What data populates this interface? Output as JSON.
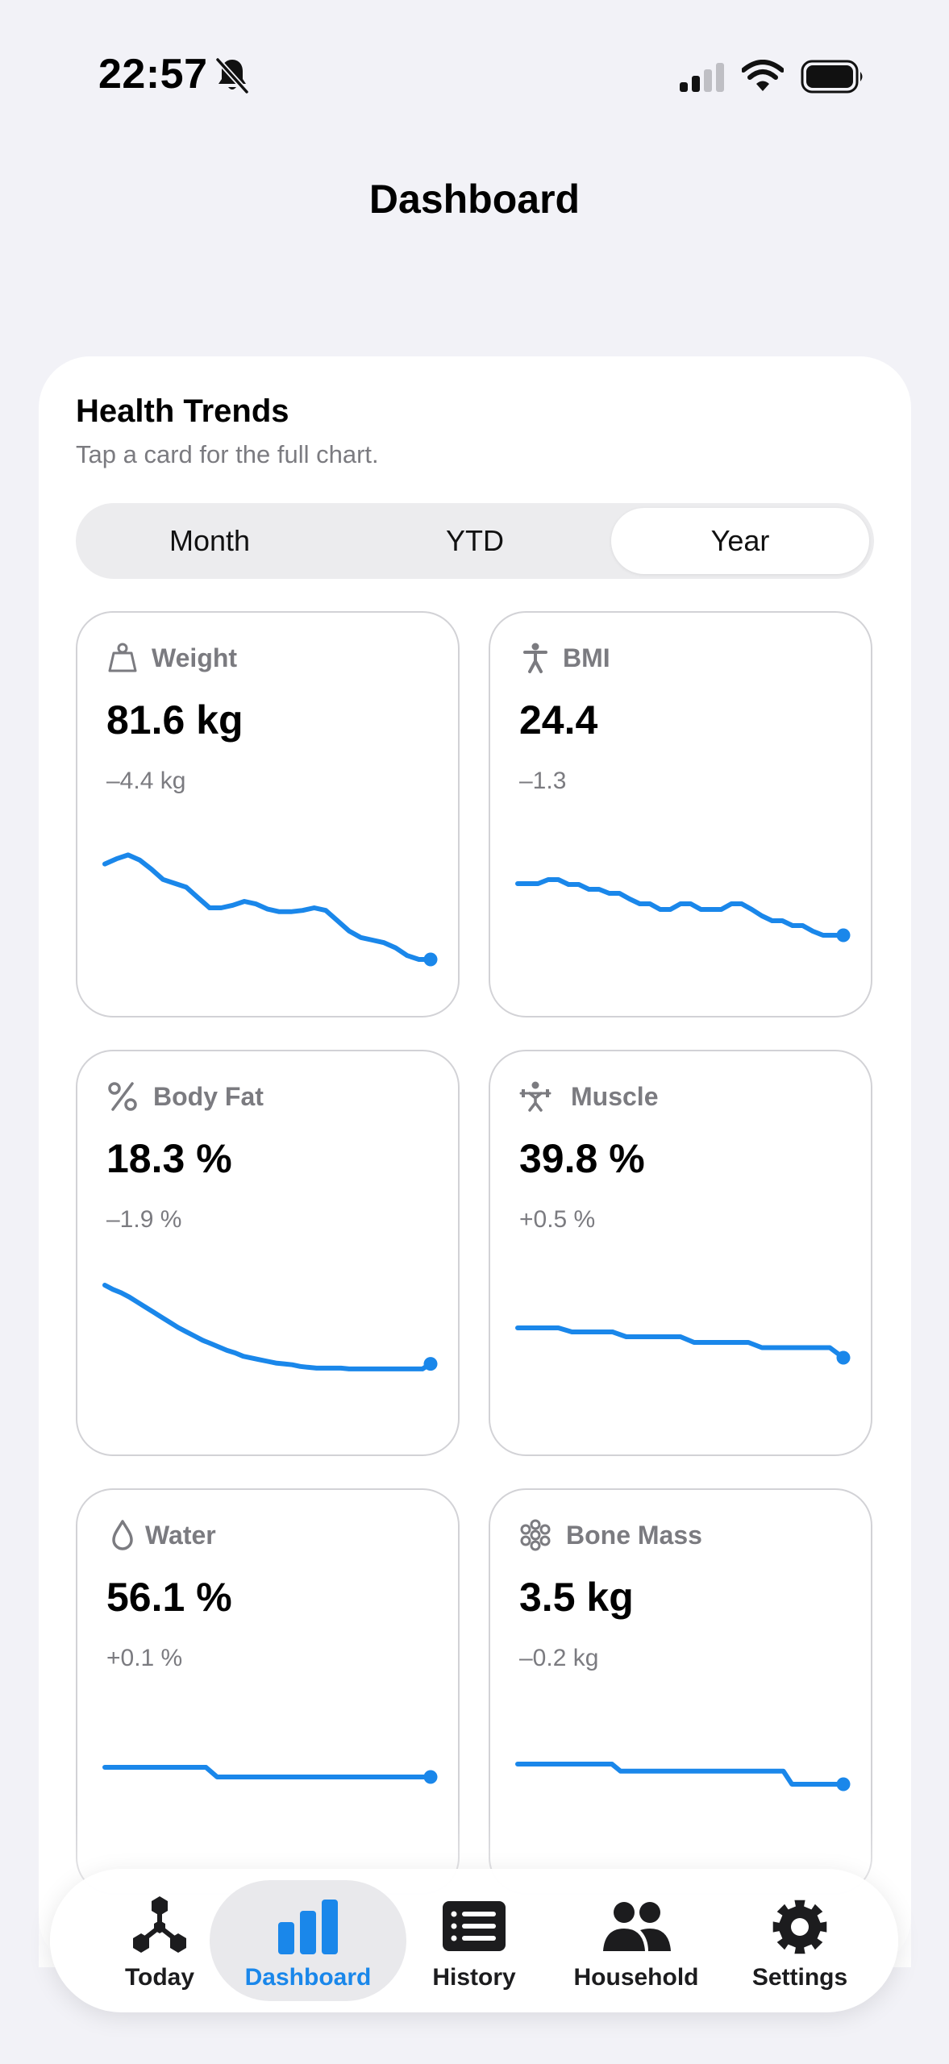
{
  "status_bar": {
    "time": "22:57"
  },
  "page": {
    "title": "Dashboard"
  },
  "trends": {
    "title": "Health Trends",
    "subtitle": "Tap a card for the full chart.",
    "segments": [
      "Month",
      "YTD",
      "Year"
    ],
    "selected_segment": "Year"
  },
  "accent_color": "#1a87ea",
  "metrics": [
    {
      "label": "Weight",
      "icon": "scale-icon",
      "value": "81.6 kg",
      "delta": "–4.4 kg",
      "trend": [
        0.26,
        0.22,
        0.19,
        0.23,
        0.3,
        0.38,
        0.41,
        0.44,
        0.52,
        0.6,
        0.6,
        0.58,
        0.55,
        0.57,
        0.61,
        0.63,
        0.63,
        0.62,
        0.6,
        0.62,
        0.7,
        0.78,
        0.83,
        0.85,
        0.87,
        0.91,
        0.97,
        1.0,
        1.0
      ]
    },
    {
      "label": "BMI",
      "icon": "person-icon",
      "value": "24.4",
      "delta": "–1.3",
      "trend": [
        0.26,
        0.26,
        0.26,
        0.21,
        0.21,
        0.27,
        0.27,
        0.33,
        0.33,
        0.38,
        0.38,
        0.45,
        0.51,
        0.51,
        0.58,
        0.58,
        0.51,
        0.51,
        0.58,
        0.58,
        0.58,
        0.51,
        0.51,
        0.58,
        0.66,
        0.72,
        0.72,
        0.78,
        0.78,
        0.85,
        0.9,
        0.9,
        0.9
      ]
    },
    {
      "label": "Body Fat",
      "icon": "percent-icon",
      "value": "18.3 %",
      "delta": "–1.9 %",
      "trend": [
        0.0,
        0.05,
        0.09,
        0.14,
        0.2,
        0.26,
        0.32,
        0.38,
        0.44,
        0.5,
        0.55,
        0.6,
        0.65,
        0.69,
        0.73,
        0.77,
        0.8,
        0.84,
        0.86,
        0.88,
        0.9,
        0.92,
        0.93,
        0.94,
        0.96,
        0.97,
        0.98,
        0.98,
        0.98,
        0.98,
        0.99,
        0.99,
        0.99,
        0.99,
        0.99,
        0.99,
        0.99,
        0.99,
        0.99,
        0.99,
        0.93
      ]
    },
    {
      "label": "Muscle",
      "icon": "weightlifter-icon",
      "value": "39.8 %",
      "delta": "+0.5 %",
      "trend": [
        0.26,
        0.26,
        0.26,
        0.26,
        0.36,
        0.36,
        0.36,
        0.36,
        0.48,
        0.48,
        0.48,
        0.48,
        0.48,
        0.62,
        0.62,
        0.62,
        0.62,
        0.62,
        0.75,
        0.75,
        0.75,
        0.75,
        0.75,
        0.75,
        1.0
      ]
    },
    {
      "label": "Water",
      "icon": "drop-icon",
      "value": "56.1 %",
      "delta": "+0.1 %",
      "trend": [
        0.0,
        0.0,
        0.0,
        0.0,
        0.0,
        0.0,
        0.0,
        0.0,
        0.0,
        0.0,
        1.0,
        1.0,
        1.0,
        1.0,
        1.0,
        1.0,
        1.0,
        1.0,
        1.0,
        1.0,
        1.0,
        1.0,
        1.0,
        1.0,
        1.0,
        1.0,
        1.0,
        1.0,
        1.0,
        1.0
      ]
    },
    {
      "label": "Bone Mass",
      "icon": "bone-mass-icon",
      "value": "3.5 kg",
      "delta": "–0.2 kg",
      "trend": [
        0.0,
        0.0,
        0.0,
        0.0,
        0.0,
        0.0,
        0.0,
        0.0,
        0.0,
        0.0,
        0.0,
        0.0,
        0.35,
        0.35,
        0.35,
        0.35,
        0.35,
        0.35,
        0.35,
        0.35,
        0.35,
        0.35,
        0.35,
        0.35,
        0.35,
        0.35,
        0.35,
        0.35,
        0.35,
        0.35,
        0.35,
        0.35,
        1.0,
        1.0,
        1.0,
        1.0,
        1.0,
        1.0,
        1.0
      ]
    }
  ],
  "tabs": [
    {
      "label": "Today",
      "icon": "molecule-icon"
    },
    {
      "label": "Dashboard",
      "icon": "bar-chart-icon"
    },
    {
      "label": "History",
      "icon": "list-icon"
    },
    {
      "label": "Household",
      "icon": "people-icon"
    },
    {
      "label": "Settings",
      "icon": "gear-icon"
    }
  ],
  "selected_tab": "Dashboard"
}
